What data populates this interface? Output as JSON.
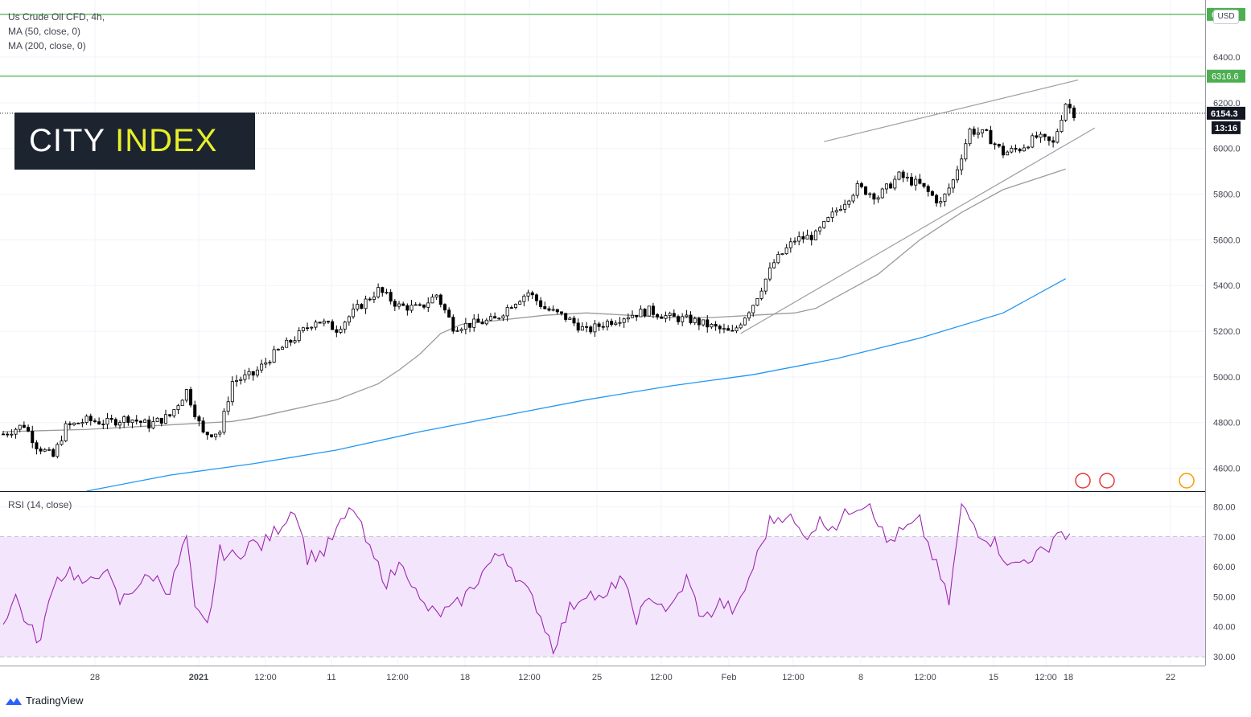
{
  "legend": {
    "symbol": "Us Crude Oil CFD, 4h,",
    "ma50": "MA (50, close, 0)",
    "ma200": "MA (200, close, 0)",
    "rsi": "RSI (14, close)"
  },
  "logo": {
    "part1": "CITY",
    "part2": "INDEX"
  },
  "brand": {
    "footer": "TradingView"
  },
  "currency": "USD",
  "colors": {
    "up": "#ffffff",
    "down": "#000000",
    "wick": "#000000",
    "ma50": "#9b9b9b",
    "ma200": "#2196f3",
    "rsi": "#9c27b0",
    "rsi_band": "#f3e5fc",
    "level": "#4caf50",
    "grid": "#f0f3fa"
  },
  "chart_data": {
    "type": "candlestick",
    "price_axis": {
      "ylim": [
        4500,
        6650
      ],
      "ticks": [
        4600,
        4800,
        5000,
        5200,
        5400,
        5600,
        5800,
        6000,
        6200,
        6400
      ]
    },
    "x_ticks": [
      "28",
      "2021",
      "12:00",
      "11",
      "12:00",
      "18",
      "12:00",
      "25",
      "12:00",
      "Feb",
      "12:00",
      "8",
      "12:00",
      "15",
      "12:00",
      "18",
      "22"
    ],
    "levels": [
      {
        "value": 6587.1,
        "label": "6587.1"
      },
      {
        "value": 6316.6,
        "label": "6316.6"
      }
    ],
    "last_price": {
      "value": 6154.3,
      "label": "6154.3",
      "countdown": "13:16"
    },
    "series": [
      {
        "name": "MA (50, close, 0)",
        "points": [
          [
            0,
            4760
          ],
          [
            10,
            4765
          ],
          [
            20,
            4770
          ],
          [
            30,
            4780
          ],
          [
            40,
            4790
          ],
          [
            50,
            4800
          ],
          [
            55,
            4805
          ],
          [
            60,
            4820
          ],
          [
            70,
            4860
          ],
          [
            80,
            4900
          ],
          [
            90,
            4970
          ],
          [
            95,
            5030
          ],
          [
            100,
            5100
          ],
          [
            105,
            5190
          ],
          [
            110,
            5230
          ],
          [
            120,
            5250
          ],
          [
            130,
            5270
          ],
          [
            140,
            5280
          ],
          [
            150,
            5270
          ],
          [
            160,
            5260
          ],
          [
            170,
            5260
          ],
          [
            180,
            5270
          ],
          [
            190,
            5280
          ],
          [
            195,
            5300
          ],
          [
            200,
            5350
          ],
          [
            210,
            5450
          ],
          [
            220,
            5600
          ],
          [
            230,
            5720
          ],
          [
            240,
            5820
          ],
          [
            250,
            5880
          ],
          [
            255,
            5910
          ]
        ]
      },
      {
        "name": "MA (200, close, 0)",
        "points": [
          [
            20,
            4500
          ],
          [
            40,
            4570
          ],
          [
            60,
            4620
          ],
          [
            80,
            4680
          ],
          [
            100,
            4760
          ],
          [
            120,
            4830
          ],
          [
            140,
            4900
          ],
          [
            160,
            4960
          ],
          [
            180,
            5010
          ],
          [
            200,
            5080
          ],
          [
            220,
            5170
          ],
          [
            240,
            5280
          ],
          [
            255,
            5430
          ]
        ]
      }
    ],
    "channel": [
      {
        "from": [
          197,
          6030
        ],
        "to": [
          258,
          6300
        ]
      },
      {
        "from": [
          177,
          5190
        ],
        "to": [
          262,
          6090
        ]
      }
    ],
    "candles_anchors": [
      [
        0,
        4750
      ],
      [
        5,
        4790
      ],
      [
        8,
        4700
      ],
      [
        12,
        4650
      ],
      [
        15,
        4780
      ],
      [
        20,
        4810
      ],
      [
        25,
        4800
      ],
      [
        30,
        4820
      ],
      [
        35,
        4790
      ],
      [
        40,
        4830
      ],
      [
        44,
        4940
      ],
      [
        48,
        4750
      ],
      [
        52,
        4760
      ],
      [
        55,
        4980
      ],
      [
        60,
        5010
      ],
      [
        65,
        5100
      ],
      [
        70,
        5170
      ],
      [
        75,
        5250
      ],
      [
        80,
        5210
      ],
      [
        85,
        5300
      ],
      [
        90,
        5380
      ],
      [
        95,
        5310
      ],
      [
        100,
        5300
      ],
      [
        104,
        5360
      ],
      [
        108,
        5220
      ],
      [
        112,
        5230
      ],
      [
        118,
        5250
      ],
      [
        122,
        5320
      ],
      [
        126,
        5370
      ],
      [
        130,
        5300
      ],
      [
        135,
        5260
      ],
      [
        140,
        5200
      ],
      [
        145,
        5240
      ],
      [
        150,
        5270
      ],
      [
        155,
        5290
      ],
      [
        160,
        5260
      ],
      [
        165,
        5250
      ],
      [
        170,
        5220
      ],
      [
        175,
        5190
      ],
      [
        180,
        5320
      ],
      [
        185,
        5500
      ],
      [
        190,
        5600
      ],
      [
        195,
        5620
      ],
      [
        200,
        5730
      ],
      [
        205,
        5830
      ],
      [
        210,
        5790
      ],
      [
        215,
        5880
      ],
      [
        220,
        5840
      ],
      [
        225,
        5760
      ],
      [
        228,
        5860
      ],
      [
        232,
        6080
      ],
      [
        236,
        6060
      ],
      [
        240,
        5980
      ],
      [
        244,
        6000
      ],
      [
        248,
        6050
      ],
      [
        252,
        6020
      ],
      [
        255,
        6200
      ],
      [
        257,
        6154
      ]
    ],
    "rsi": {
      "ylim": [
        27,
        85
      ],
      "ticks": [
        30,
        40,
        50,
        60,
        70,
        80
      ],
      "band": [
        30,
        70
      ],
      "anchors": [
        [
          0,
          42
        ],
        [
          3,
          50
        ],
        [
          6,
          40
        ],
        [
          9,
          35
        ],
        [
          12,
          55
        ],
        [
          16,
          59
        ],
        [
          20,
          53
        ],
        [
          24,
          60
        ],
        [
          28,
          48
        ],
        [
          32,
          54
        ],
        [
          36,
          57
        ],
        [
          40,
          52
        ],
        [
          44,
          70
        ],
        [
          46,
          45
        ],
        [
          49,
          40
        ],
        [
          52,
          65
        ],
        [
          56,
          63
        ],
        [
          59,
          68
        ],
        [
          62,
          67
        ],
        [
          66,
          73
        ],
        [
          70,
          80
        ],
        [
          73,
          63
        ],
        [
          77,
          65
        ],
        [
          80,
          72
        ],
        [
          84,
          80
        ],
        [
          88,
          65
        ],
        [
          92,
          55
        ],
        [
          96,
          62
        ],
        [
          100,
          48
        ],
        [
          104,
          44
        ],
        [
          108,
          46
        ],
        [
          112,
          52
        ],
        [
          116,
          60
        ],
        [
          120,
          65
        ],
        [
          124,
          55
        ],
        [
          128,
          47
        ],
        [
          132,
          33
        ],
        [
          136,
          46
        ],
        [
          140,
          52
        ],
        [
          144,
          48
        ],
        [
          148,
          57
        ],
        [
          152,
          43
        ],
        [
          156,
          50
        ],
        [
          160,
          45
        ],
        [
          164,
          56
        ],
        [
          168,
          42
        ],
        [
          172,
          48
        ],
        [
          176,
          45
        ],
        [
          180,
          60
        ],
        [
          184,
          75
        ],
        [
          188,
          78
        ],
        [
          192,
          70
        ],
        [
          196,
          75
        ],
        [
          200,
          74
        ],
        [
          204,
          80
        ],
        [
          208,
          82
        ],
        [
          212,
          68
        ],
        [
          216,
          72
        ],
        [
          220,
          75
        ],
        [
          224,
          60
        ],
        [
          227,
          48
        ],
        [
          230,
          80
        ],
        [
          234,
          72
        ],
        [
          238,
          68
        ],
        [
          242,
          60
        ],
        [
          246,
          63
        ],
        [
          250,
          65
        ],
        [
          253,
          72
        ],
        [
          256,
          70
        ]
      ]
    }
  }
}
